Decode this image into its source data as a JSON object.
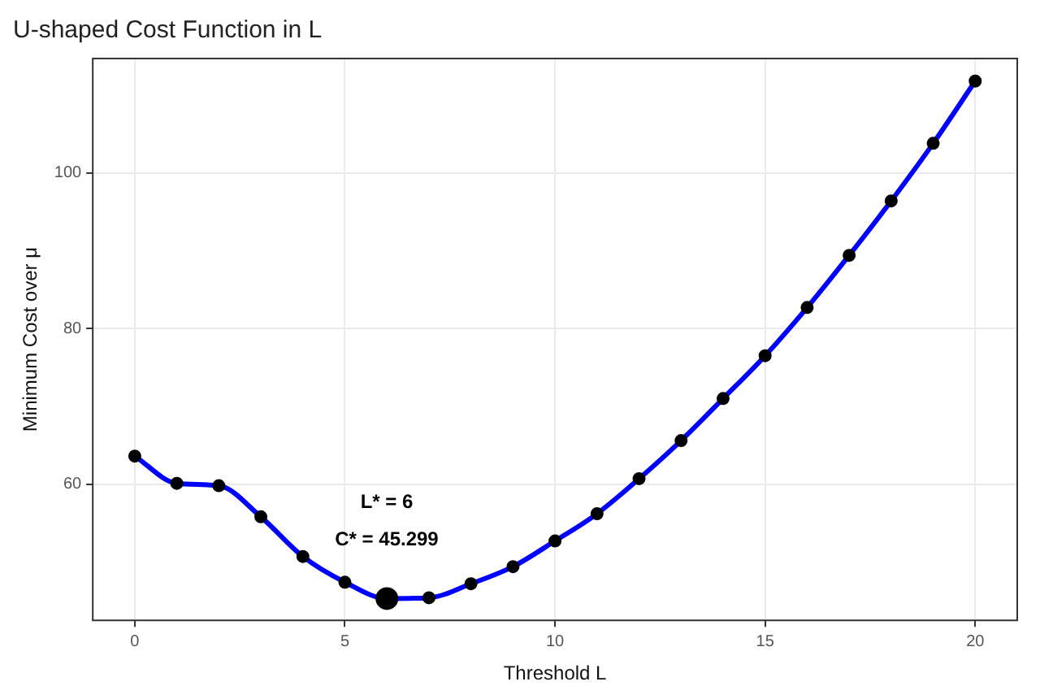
{
  "chart_data": {
    "type": "line",
    "title": "U-shaped Cost Function in L",
    "xlabel": "Threshold L",
    "ylabel": "Minimum Cost over μ",
    "x": [
      0,
      1,
      2,
      3,
      4,
      5,
      6,
      7,
      8,
      9,
      10,
      11,
      12,
      13,
      14,
      15,
      16,
      17,
      18,
      19,
      20
    ],
    "series": [
      {
        "color": "#0000ff",
        "marker": "none",
        "values": [
          63.6,
          60.1,
          59.8,
          55.8,
          50.7,
          47.4,
          45.3,
          45.4,
          47.2,
          49.4,
          52.7,
          56.2,
          60.7,
          65.6,
          71.0,
          76.5,
          82.7,
          89.4,
          96.4,
          103.8,
          111.8
        ]
      },
      {
        "type": "scatter",
        "color": "#000000",
        "marker": "circle",
        "values": [
          63.6,
          60.1,
          59.8,
          55.8,
          50.7,
          47.4,
          null,
          45.4,
          47.2,
          49.4,
          52.7,
          56.2,
          60.7,
          65.6,
          71.0,
          76.5,
          82.7,
          89.4,
          96.4,
          103.8,
          111.8
        ]
      },
      {
        "type": "scatter",
        "color": "#000000",
        "marker": "circle",
        "x": [
          6
        ],
        "values": [
          45.3
        ]
      }
    ],
    "annotations": [
      "L* = 6",
      "C* = 45.299"
    ],
    "xlim": [
      -1,
      21
    ],
    "xticks": [
      0,
      5,
      10,
      15,
      20
    ],
    "ylim": [
      42.5,
      114.7
    ],
    "yticks": [
      60,
      80,
      100
    ],
    "grid": true,
    "legend": false
  }
}
